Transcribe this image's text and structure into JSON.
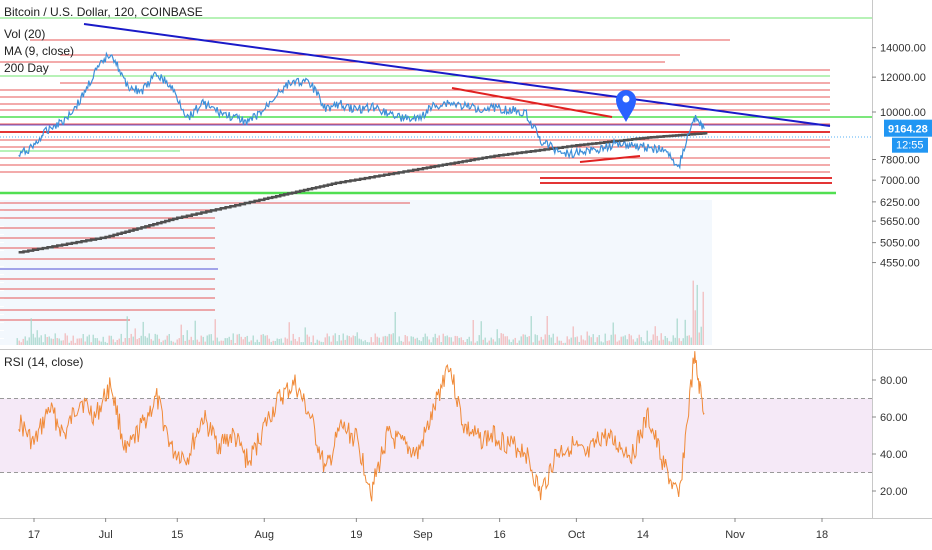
{
  "chart_data": [
    {
      "type": "line",
      "title": "Bitcoin / U.S. Dollar, 120, COINBASE",
      "indicators": [
        "Vol (20)",
        "MA (9, close)",
        "200 Day"
      ],
      "y_axis": {
        "ticks": [
          4550,
          5050,
          5650,
          6250,
          7000,
          7800,
          9164.28,
          10000,
          12000,
          14000
        ],
        "tick_labels": [
          "4550.00",
          "5050.00",
          "5650.00",
          "6250.00",
          "7000.00",
          "7800.00",
          "9164.28",
          "10000.00",
          "12000.00",
          "14000.00"
        ],
        "scale": "log",
        "side": "right"
      },
      "last_price": {
        "label": "9164.28",
        "value": 9164.28,
        "timer": "12:55",
        "color": "#2196f3"
      },
      "x_axis": {
        "tick_labels": [
          "17",
          "Jul",
          "15",
          "Aug",
          "19",
          "Sep",
          "16",
          "Oct",
          "14",
          "Nov",
          "18"
        ]
      },
      "series": [
        {
          "name": "Bitcoin / U.S. Dollar",
          "color": "#3d8fd9",
          "x": [
            "Jun 14",
            "Jun 17",
            "Jun 20",
            "Jun 23",
            "Jun 26",
            "Jun 29",
            "Jul 2",
            "Jul 5",
            "Jul 8",
            "Jul 11",
            "Jul 14",
            "Jul 17",
            "Jul 20",
            "Jul 23",
            "Jul 26",
            "Jul 29",
            "Aug 1",
            "Aug 4",
            "Aug 7",
            "Aug 10",
            "Aug 13",
            "Aug 16",
            "Aug 19",
            "Aug 22",
            "Aug 25",
            "Aug 28",
            "Aug 31",
            "Sep 3",
            "Sep 6",
            "Sep 9",
            "Sep 12",
            "Sep 15",
            "Sep 18",
            "Sep 21",
            "Sep 24",
            "Sep 27",
            "Sep 30",
            "Oct 3",
            "Oct 6",
            "Oct 9",
            "Oct 12",
            "Oct 15",
            "Oct 18",
            "Oct 21",
            "Oct 24",
            "Oct 26"
          ],
          "values": [
            7950,
            8400,
            9200,
            9600,
            10600,
            12300,
            13700,
            11500,
            11100,
            12200,
            11300,
            9700,
            10500,
            10000,
            9700,
            9500,
            10100,
            11200,
            11800,
            11600,
            10200,
            10400,
            10100,
            10300,
            10000,
            9700,
            9600,
            10300,
            10500,
            10300,
            10200,
            10250,
            10100,
            10000,
            8600,
            8200,
            8050,
            8150,
            8250,
            8500,
            8400,
            8300,
            8200,
            7500,
            9700,
            9164
          ]
        },
        {
          "name": "200 Day",
          "color": "#505050",
          "x": [
            "Jun 14",
            "Jul 1",
            "Jul 15",
            "Aug 1",
            "Aug 15",
            "Sep 1",
            "Sep 15",
            "Oct 1",
            "Oct 15",
            "Oct 26"
          ],
          "values": [
            4800,
            5200,
            5750,
            6350,
            6900,
            7450,
            7950,
            8400,
            8750,
            8950
          ]
        }
      ],
      "volume": {
        "name": "Vol (20)",
        "color": "#e8b4b8"
      },
      "drawings": {
        "trendline_color": "#1a1ac8",
        "resistance_color": "#e02020",
        "support_color": "#3fdc3f",
        "marker_color": "#2962ff"
      }
    },
    {
      "type": "line",
      "title": "RSI (14, close)",
      "y_axis": {
        "ticks": [
          20,
          40,
          60,
          80
        ],
        "tick_labels": [
          "20.00",
          "40.00",
          "60.00",
          "80.00"
        ],
        "ylim": [
          3,
          96
        ]
      },
      "band": {
        "lower": 30,
        "upper": 70,
        "color": "#9c27b0"
      },
      "series": [
        {
          "name": "RSI (14, close)",
          "color": "#f08a38",
          "x": [
            "Jun 14",
            "Jun 17",
            "Jun 20",
            "Jun 23",
            "Jun 26",
            "Jun 29",
            "Jul 2",
            "Jul 5",
            "Jul 8",
            "Jul 11",
            "Jul 14",
            "Jul 17",
            "Jul 20",
            "Jul 23",
            "Jul 26",
            "Jul 29",
            "Aug 1",
            "Aug 4",
            "Aug 7",
            "Aug 10",
            "Aug 13",
            "Aug 16",
            "Aug 19",
            "Aug 22",
            "Aug 25",
            "Aug 28",
            "Aug 31",
            "Sep 3",
            "Sep 6",
            "Sep 9",
            "Sep 12",
            "Sep 15",
            "Sep 18",
            "Sep 21",
            "Sep 24",
            "Sep 27",
            "Sep 30",
            "Oct 3",
            "Oct 6",
            "Oct 9",
            "Oct 12",
            "Oct 15",
            "Oct 18",
            "Oct 21",
            "Oct 24",
            "Oct 26"
          ],
          "values": [
            58,
            45,
            65,
            50,
            70,
            60,
            78,
            40,
            55,
            70,
            42,
            38,
            60,
            45,
            50,
            35,
            55,
            70,
            78,
            60,
            30,
            55,
            48,
            20,
            50,
            45,
            40,
            62,
            90,
            55,
            48,
            50,
            45,
            42,
            18,
            40,
            45,
            38,
            50,
            45,
            40,
            60,
            35,
            15,
            92,
            62
          ]
        }
      ]
    }
  ]
}
